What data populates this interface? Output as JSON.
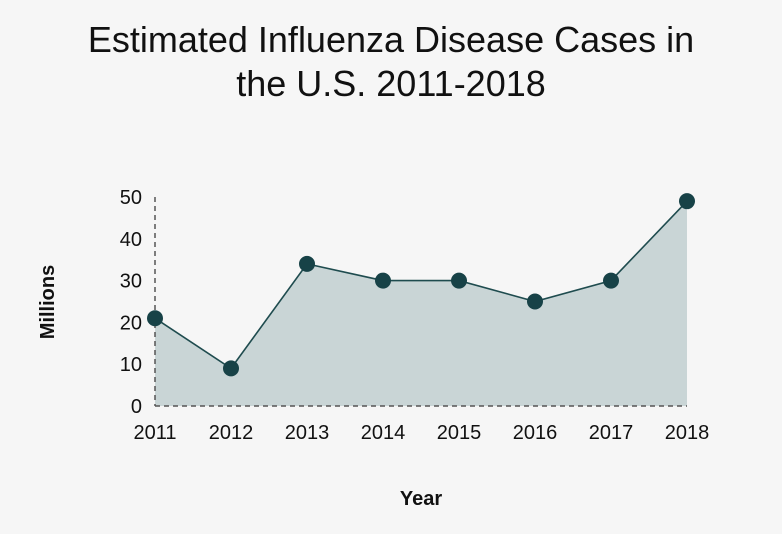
{
  "chart_data": {
    "type": "area",
    "title_line1": "Estimated Influenza Disease Cases in",
    "title_line2": "the U.S. 2011-2018",
    "xlabel": "Year",
    "ylabel": "Millions",
    "categories": [
      "2011",
      "2012",
      "2013",
      "2014",
      "2015",
      "2016",
      "2017",
      "2018"
    ],
    "series": [
      {
        "values": [
          21,
          9,
          34,
          30,
          30,
          25,
          30,
          49
        ]
      }
    ],
    "ylim": [
      0,
      50
    ],
    "yticks": [
      0,
      10,
      20,
      30,
      40,
      50
    ],
    "grid": false,
    "legend": "none",
    "colors": {
      "line": "#1f4c4f",
      "fill": "#c9d5d6",
      "marker": "#174247",
      "axis": "#555555"
    }
  }
}
